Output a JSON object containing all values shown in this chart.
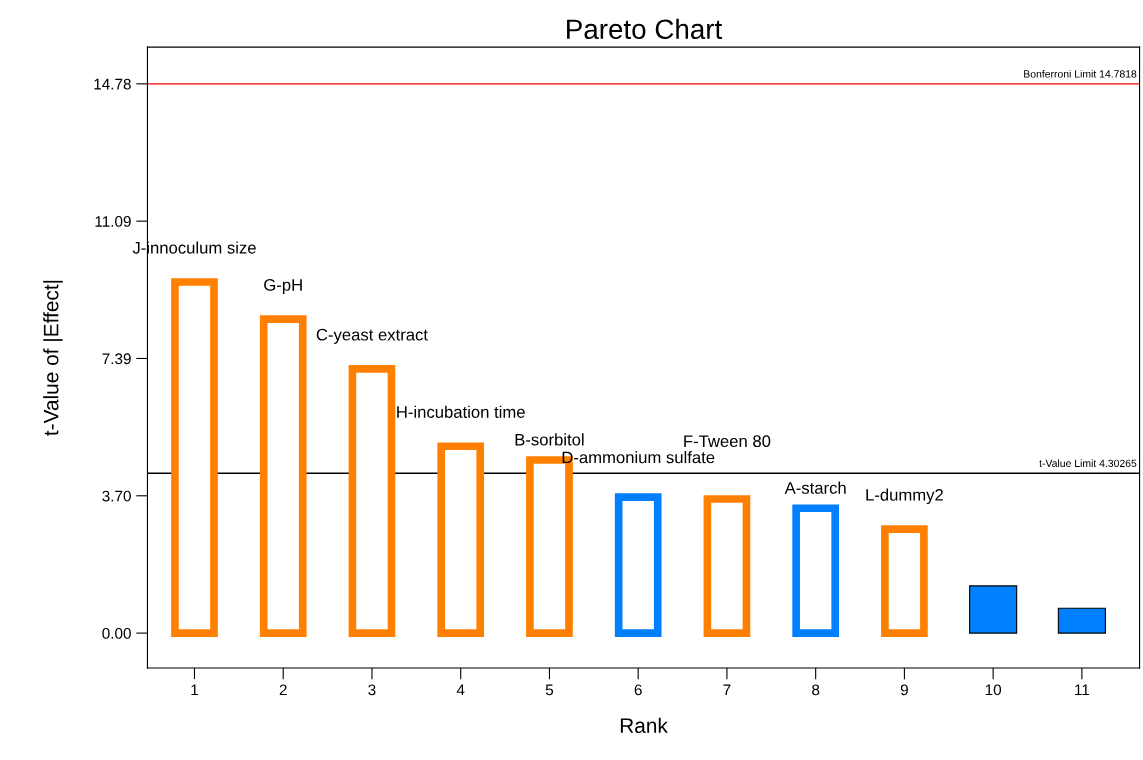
{
  "chart_data": {
    "type": "bar",
    "title": "Pareto Chart",
    "xlabel": "Rank",
    "ylabel": "t-Value of |Effect|",
    "categories": [
      "1",
      "2",
      "3",
      "4",
      "5",
      "6",
      "7",
      "8",
      "9",
      "10",
      "11"
    ],
    "values": [
      9.45,
      8.45,
      7.11,
      5.03,
      4.66,
      3.66,
      3.61,
      3.36,
      2.8,
      1.27,
      0.67
    ],
    "colors": [
      "#ff8000",
      "#ff8000",
      "#ff8000",
      "#ff8000",
      "#ff8000",
      "#0080ff",
      "#ff8000",
      "#0080ff",
      "#ff8000",
      "#0080ff",
      "#0080ff"
    ],
    "value_labels": [
      "J-innoculum size",
      "G-pH",
      "C-yeast extract",
      "H-incubation time",
      "B-sorbitol",
      "D-ammonium sulfate",
      "F-Tween 80",
      "A-starch",
      "L-dummy2",
      null,
      null
    ],
    "ylim": [
      -0.94,
      15.77
    ],
    "yticks": [
      {
        "value": 0,
        "label": "0.00"
      },
      {
        "value": 3.6955,
        "label": "3.70"
      },
      {
        "value": 7.3909,
        "label": "7.39"
      },
      {
        "value": 11.0864,
        "label": "11.09"
      },
      {
        "value": 14.7818,
        "label": "14.78"
      }
    ],
    "ref_lines": [
      {
        "axis": "y",
        "value": 14.7818,
        "label": "Bonferroni Limit 14.7818",
        "color": "#ff0000"
      },
      {
        "axis": "y",
        "value": 4.30265,
        "label": "t-Value Limit 4.30265",
        "color": "#000000"
      }
    ],
    "grid": false,
    "legend": false
  }
}
